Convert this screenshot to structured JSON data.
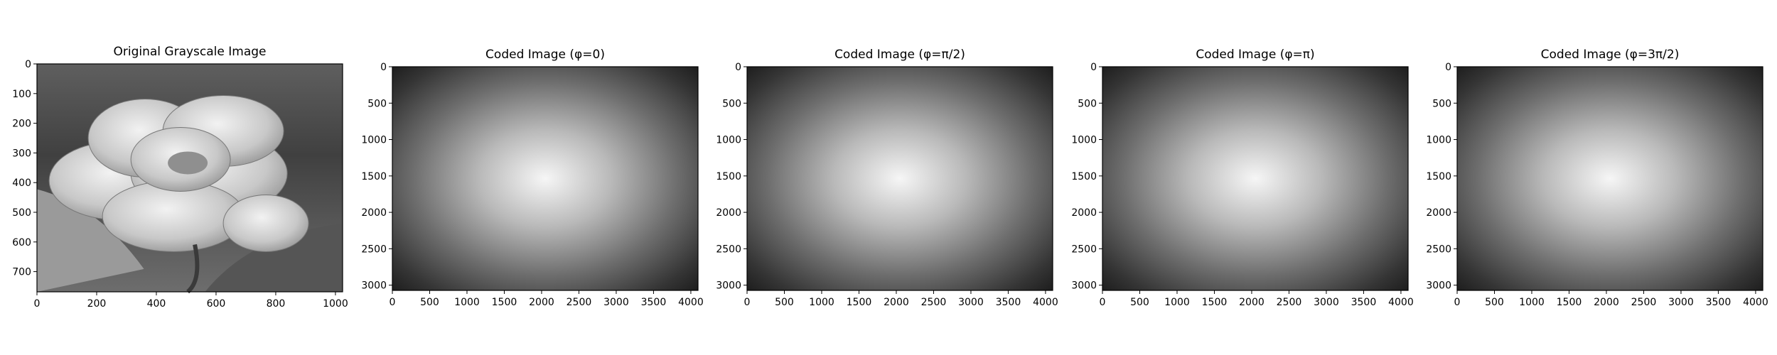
{
  "figure": {
    "background": "#ffffff"
  },
  "chart_data": [
    {
      "type": "heatmap",
      "title": "Original Grayscale Image",
      "content": "photo",
      "colormap": "gray",
      "xlim": [
        0,
        1024
      ],
      "ylim": [
        768,
        0
      ],
      "x_ticks": [
        0,
        200,
        400,
        600,
        800,
        1000
      ],
      "y_ticks": [
        0,
        100,
        200,
        300,
        400,
        500,
        600,
        700
      ],
      "grid": false
    },
    {
      "type": "heatmap",
      "title": "Coded Image (φ=0)",
      "content": "radial-gradient",
      "colormap": "gray",
      "xlim": [
        0,
        4096
      ],
      "ylim": [
        3072,
        0
      ],
      "center": [
        2048,
        1536
      ],
      "x_ticks": [
        0,
        500,
        1000,
        1500,
        2000,
        2500,
        3000,
        3500,
        4000
      ],
      "y_ticks": [
        0,
        500,
        1000,
        1500,
        2000,
        2500,
        3000
      ],
      "grid": false
    },
    {
      "type": "heatmap",
      "title": "Coded Image (φ=π/2)",
      "content": "radial-gradient",
      "colormap": "gray",
      "xlim": [
        0,
        4096
      ],
      "ylim": [
        3072,
        0
      ],
      "center": [
        2048,
        1536
      ],
      "x_ticks": [
        0,
        500,
        1000,
        1500,
        2000,
        2500,
        3000,
        3500,
        4000
      ],
      "y_ticks": [
        0,
        500,
        1000,
        1500,
        2000,
        2500,
        3000
      ],
      "grid": false
    },
    {
      "type": "heatmap",
      "title": "Coded Image (φ=π)",
      "content": "radial-gradient",
      "colormap": "gray",
      "xlim": [
        0,
        4096
      ],
      "ylim": [
        3072,
        0
      ],
      "center": [
        2048,
        1536
      ],
      "x_ticks": [
        0,
        500,
        1000,
        1500,
        2000,
        2500,
        3000,
        3500,
        4000
      ],
      "y_ticks": [
        0,
        500,
        1000,
        1500,
        2000,
        2500,
        3000
      ],
      "grid": false
    },
    {
      "type": "heatmap",
      "title": "Coded Image (φ=3π/2)",
      "content": "radial-gradient",
      "colormap": "gray",
      "xlim": [
        0,
        4096
      ],
      "ylim": [
        3072,
        0
      ],
      "center": [
        2048,
        1536
      ],
      "x_ticks": [
        0,
        500,
        1000,
        1500,
        2000,
        2500,
        3000,
        3500,
        4000
      ],
      "y_ticks": [
        0,
        500,
        1000,
        1500,
        2000,
        2500,
        3000
      ],
      "grid": false
    }
  ]
}
